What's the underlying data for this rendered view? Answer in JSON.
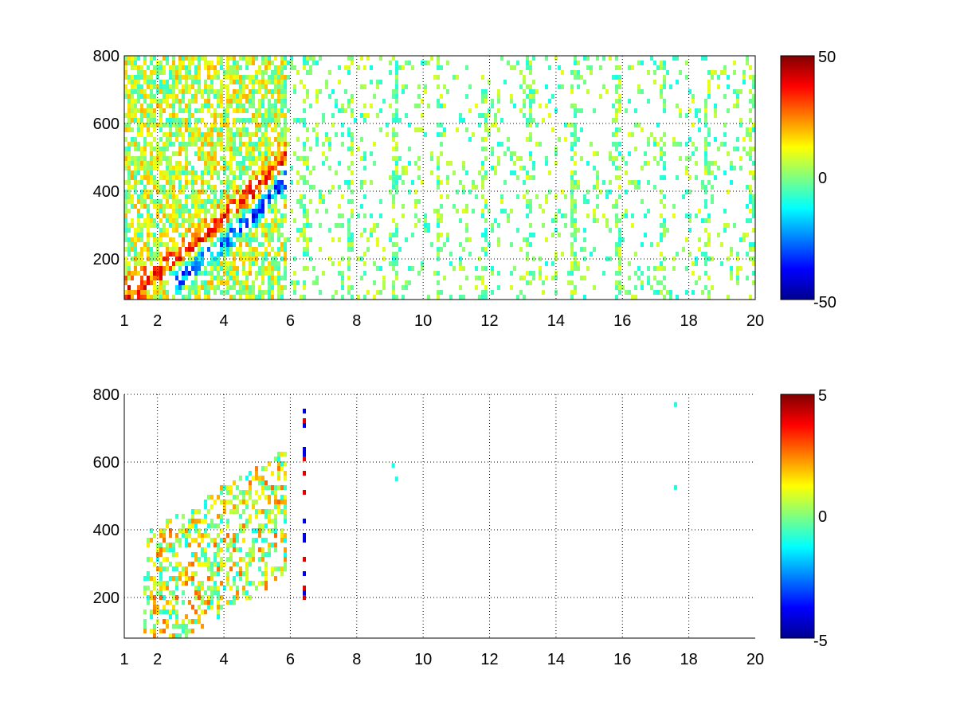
{
  "chart_data": [
    {
      "type": "heatmap",
      "title": "",
      "xlabel": "",
      "ylabel": "",
      "xlim": [
        1,
        20
      ],
      "ylim": [
        80,
        800
      ],
      "xticks": [
        1,
        2,
        4,
        6,
        8,
        10,
        12,
        14,
        16,
        18,
        20
      ],
      "xtick_labels": [
        "1",
        "2",
        "4",
        "6",
        "8",
        "10",
        "12",
        "14",
        "16",
        "18",
        "20"
      ],
      "yticks": [
        200,
        400,
        600,
        800
      ],
      "ytick_labels": [
        "200",
        "400",
        "600",
        "800"
      ],
      "grid": true,
      "colormap": "jet",
      "colorbar": {
        "limits": [
          -50,
          50
        ],
        "tick_labels": [
          "50",
          "0",
          "-50"
        ]
      },
      "features": [
        {
          "description": "dense band of strongly positive values along a rising curve",
          "x": [
            1.5,
            2.5,
            3.5,
            4.5,
            5.5
          ],
          "y": [
            130,
            230,
            280,
            380,
            460
          ],
          "value": 35
        },
        {
          "description": "negative (blue) band just below the positive curve",
          "x": [
            2.5,
            3.5,
            4.5
          ],
          "y": [
            140,
            260,
            320
          ],
          "value": -40
        },
        {
          "description": "sparse near-zero vertical streaks across the full frequency range",
          "x_range": [
            6,
            20
          ],
          "y_range": [
            80,
            800
          ],
          "value": 0
        }
      ]
    },
    {
      "type": "heatmap",
      "title": "",
      "xlabel": "",
      "ylabel": "",
      "xlim": [
        1,
        20
      ],
      "ylim": [
        80,
        800
      ],
      "xticks": [
        1,
        2,
        4,
        6,
        8,
        10,
        12,
        14,
        16,
        18,
        20
      ],
      "xtick_labels": [
        "1",
        "2",
        "4",
        "6",
        "8",
        "10",
        "12",
        "14",
        "16",
        "18",
        "20"
      ],
      "yticks": [
        200,
        400,
        600,
        800
      ],
      "ytick_labels": [
        "200",
        "400",
        "600",
        "800"
      ],
      "grid": true,
      "colormap": "jet",
      "colorbar": {
        "limits": [
          -5,
          5
        ],
        "tick_labels": [
          "5",
          "0",
          "-5"
        ]
      },
      "features": [
        {
          "description": "cluster of mostly near-zero to slightly positive values",
          "x_range": [
            1.5,
            5.8
          ],
          "y_range": [
            100,
            600
          ],
          "value": 1
        },
        {
          "description": "isolated vertical streak with red and blue cells",
          "x": 6.5,
          "y_range": [
            150,
            760
          ],
          "value": 4
        },
        {
          "description": "isolated cells",
          "points": [
            [
              9.1,
              590
            ],
            [
              9.2,
              550
            ],
            [
              17.6,
              770
            ],
            [
              17.6,
              525
            ]
          ],
          "value": -1
        }
      ]
    }
  ]
}
